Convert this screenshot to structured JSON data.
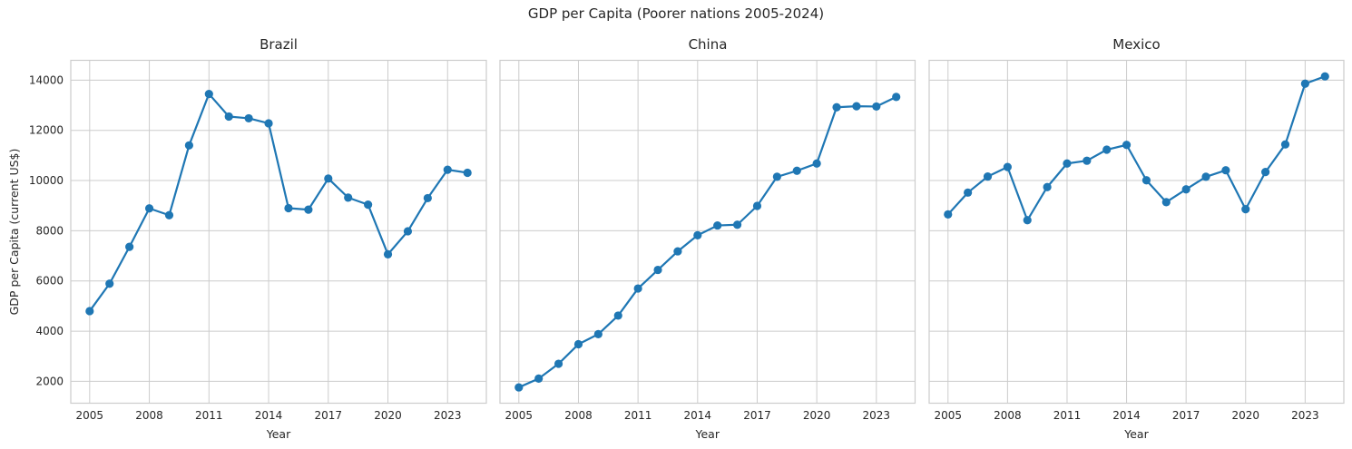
{
  "chart_data": {
    "type": "line",
    "title": "GDP per Capita (Poorer nations 2005-2024)",
    "xlabel": "Year",
    "ylabel": "GDP per Capita (current US$)",
    "x": [
      2005,
      2006,
      2007,
      2008,
      2009,
      2010,
      2011,
      2012,
      2013,
      2014,
      2015,
      2016,
      2017,
      2018,
      2019,
      2020,
      2021,
      2022,
      2023,
      2024
    ],
    "xticks": [
      2005,
      2008,
      2011,
      2014,
      2017,
      2020,
      2023
    ],
    "yticks": [
      2000,
      4000,
      6000,
      8000,
      10000,
      12000,
      14000
    ],
    "xlim": [
      2004.05,
      2024.95
    ],
    "ylim": [
      1130,
      14790
    ],
    "grid": true,
    "legend": false,
    "line_color": "#1f77b4",
    "grid_color": "#cccccc",
    "text_color": "#262626",
    "subplots": [
      {
        "title": "Brazil",
        "values": [
          4800,
          5890,
          7360,
          8890,
          8620,
          11400,
          13450,
          12550,
          12480,
          12280,
          8900,
          8840,
          10080,
          9320,
          9040,
          7060,
          7980,
          9300,
          10430,
          10310
        ]
      },
      {
        "title": "China",
        "values": [
          1760,
          2110,
          2700,
          3480,
          3880,
          4620,
          5700,
          6440,
          7180,
          7820,
          8210,
          8240,
          8990,
          10150,
          10390,
          10680,
          12920,
          12960,
          12950,
          13330
        ]
      },
      {
        "title": "Mexico",
        "values": [
          8650,
          9520,
          10160,
          10540,
          8420,
          9740,
          10680,
          10790,
          11230,
          11420,
          10010,
          9140,
          9650,
          10150,
          10410,
          8860,
          10340,
          11440,
          13860,
          14150
        ]
      }
    ]
  }
}
